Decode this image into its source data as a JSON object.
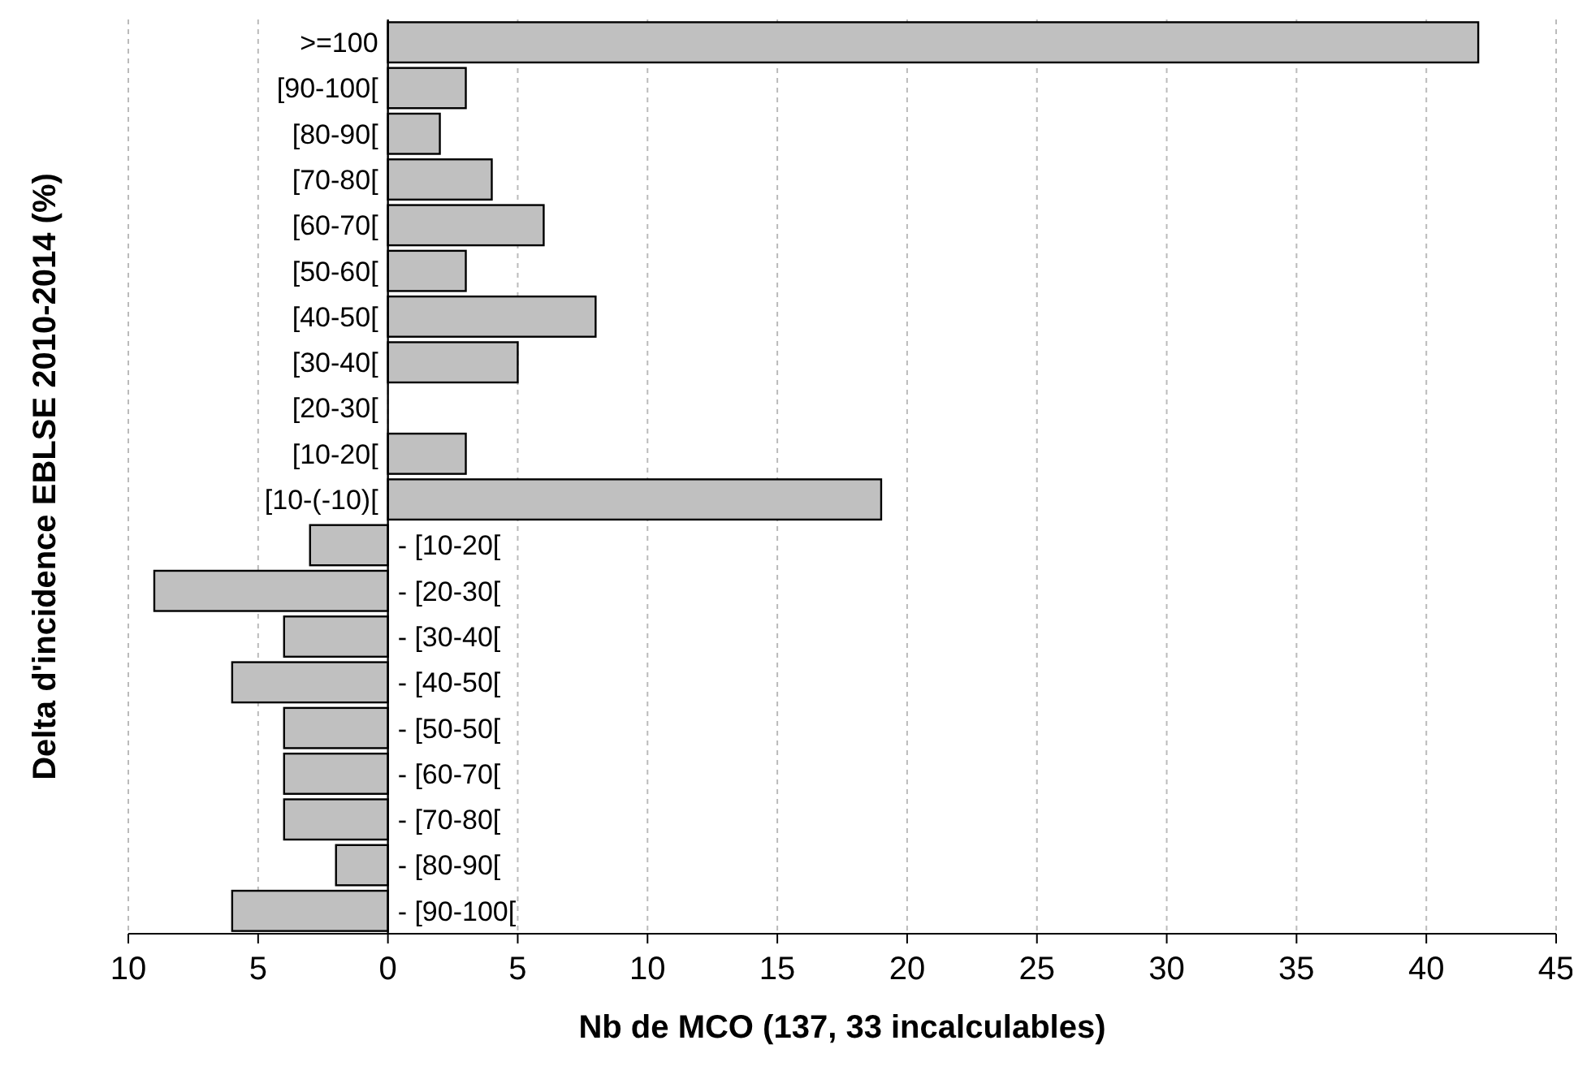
{
  "chart_data": {
    "type": "bar",
    "orientation": "horizontal",
    "xlabel": "Nb de MCO (137, 33 incalculables)",
    "ylabel": "Delta d'incidence EBLSE 2010-2014 (%)",
    "categories": [
      ">=100",
      "[90-100[",
      "[80-90[",
      "[70-80[",
      "[60-70[",
      "[50-60[",
      "[40-50[",
      "[30-40[",
      "[20-30[",
      "[10-20[",
      "[10-(-10)[",
      "- [10-20[",
      "- [20-30[",
      "- [30-40[",
      "- [40-50[",
      "- [50-50[",
      "- [60-70[",
      "- [70-80[",
      "- [80-90[",
      "- [90-100["
    ],
    "values": [
      42,
      3,
      2,
      4,
      6,
      3,
      8,
      5,
      0,
      3,
      19,
      -3,
      -9,
      -4,
      -6,
      -4,
      -4,
      -4,
      -2,
      -6
    ],
    "color": "#c0c0c0",
    "xlim": [
      -10,
      45
    ],
    "xticks": [
      {
        "value": -10,
        "label": "10"
      },
      {
        "value": -5,
        "label": "5"
      },
      0,
      5,
      10,
      15,
      20,
      25,
      30,
      35,
      40,
      45
    ],
    "grid": "x"
  }
}
